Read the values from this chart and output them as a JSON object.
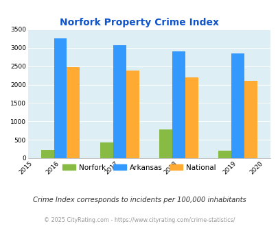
{
  "title": "Norfork Property Crime Index",
  "years": [
    2015,
    2016,
    2017,
    2018,
    2019,
    2020
  ],
  "bar_years": [
    2016,
    2017,
    2018,
    2019
  ],
  "norfork": [
    220,
    425,
    775,
    200
  ],
  "arkansas": [
    3250,
    3075,
    2900,
    2850
  ],
  "national": [
    2475,
    2375,
    2200,
    2100
  ],
  "norfork_color": "#88bb44",
  "arkansas_color": "#3399ff",
  "national_color": "#ffaa33",
  "bg_color": "#ddeef5",
  "ylim": [
    0,
    3500
  ],
  "yticks": [
    0,
    500,
    1000,
    1500,
    2000,
    2500,
    3000,
    3500
  ],
  "title_color": "#1155cc",
  "subtitle": "Crime Index corresponds to incidents per 100,000 inhabitants",
  "footer": "© 2025 CityRating.com - https://www.cityrating.com/crime-statistics/",
  "bar_width": 0.22,
  "legend_labels": [
    "Norfork",
    "Arkansas",
    "National"
  ]
}
